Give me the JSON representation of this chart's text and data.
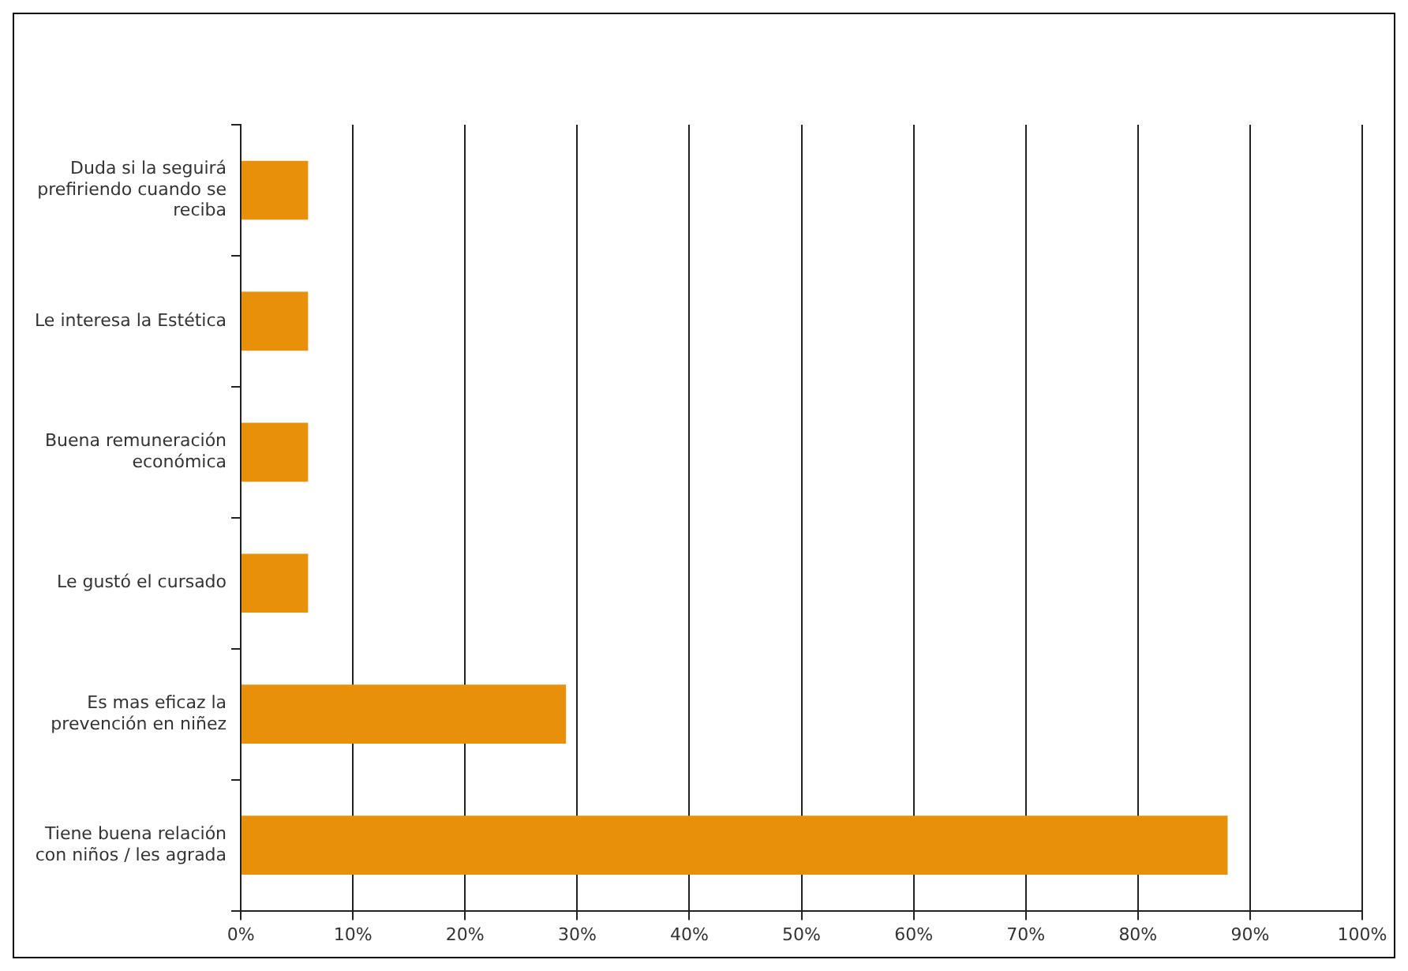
{
  "chart_data": {
    "type": "bar",
    "orientation": "horizontal",
    "categories": [
      "Duda si la seguirá prefiriendo cuando se reciba",
      "Le interesa la Estética",
      "Buena remuneración económica",
      "Le gustó el cursado",
      "Es mas eficaz la prevención en niñez",
      "Tiene buena relación con niños / les agrada"
    ],
    "values": [
      6,
      6,
      6,
      6,
      29,
      88
    ],
    "color": "#e8900a",
    "xlim": [
      0,
      100
    ],
    "xticks": [
      {
        "value": 0,
        "label": "0%"
      },
      {
        "value": 10,
        "label": "10%"
      },
      {
        "value": 20,
        "label": "20%"
      },
      {
        "value": 30,
        "label": "30%"
      },
      {
        "value": 40,
        "label": "40%"
      },
      {
        "value": 50,
        "label": "50%"
      },
      {
        "value": 60,
        "label": "60%"
      },
      {
        "value": 70,
        "label": "70%"
      },
      {
        "value": 80,
        "label": "80%"
      },
      {
        "value": 90,
        "label": "90%"
      },
      {
        "value": 100,
        "label": "100%"
      }
    ],
    "grid": "x",
    "legend": false
  }
}
